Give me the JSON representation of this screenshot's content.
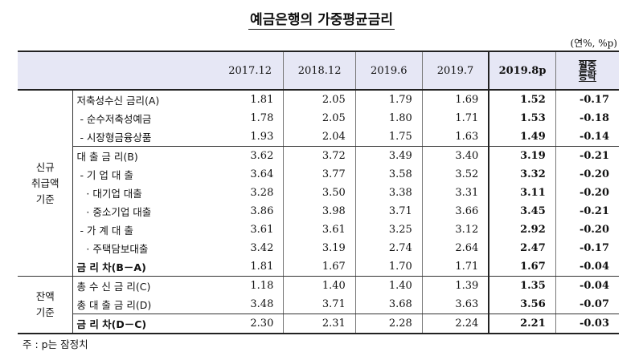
{
  "title": "예금은행의 가중평균금리",
  "unit": "(연%, %p)",
  "header": {
    "cols": [
      "2017.12",
      "2018.12",
      "2019.6",
      "2019.7",
      "2019.8p"
    ],
    "mom": [
      "월중",
      "등락"
    ]
  },
  "groups": {
    "new": [
      "신규",
      "취급액",
      "기준"
    ],
    "bal": [
      "잔액",
      "기준"
    ]
  },
  "rows": [
    {
      "label": "저축성수신 금리(A)",
      "v": [
        "1.81",
        "2.05",
        "1.79",
        "1.69",
        "1.52",
        "-0.17"
      ]
    },
    {
      "label": " - 순수저축성예금",
      "v": [
        "1.78",
        "2.05",
        "1.80",
        "1.71",
        "1.53",
        "-0.18"
      ]
    },
    {
      "label": " - 시장형금융상품",
      "v": [
        "1.93",
        "2.04",
        "1.75",
        "1.63",
        "1.49",
        "-0.14"
      ]
    },
    {
      "label": "대 출 금 리(B)",
      "v": [
        "3.62",
        "3.72",
        "3.49",
        "3.40",
        "3.19",
        "-0.21"
      ]
    },
    {
      "label": " - 기 업 대 출",
      "v": [
        "3.64",
        "3.77",
        "3.58",
        "3.52",
        "3.32",
        "-0.20"
      ]
    },
    {
      "label": "   · 대기업 대출",
      "v": [
        "3.28",
        "3.50",
        "3.38",
        "3.31",
        "3.11",
        "-0.20"
      ]
    },
    {
      "label": "   · 중소기업 대출",
      "v": [
        "3.86",
        "3.98",
        "3.71",
        "3.66",
        "3.45",
        "-0.21"
      ]
    },
    {
      "label": " - 가 계 대 출",
      "v": [
        "3.61",
        "3.61",
        "3.25",
        "3.12",
        "2.92",
        "-0.20"
      ]
    },
    {
      "label": "   · 주택담보대출",
      "v": [
        "3.42",
        "3.19",
        "2.74",
        "2.64",
        "2.47",
        "-0.17"
      ]
    },
    {
      "label": "금 리 차(B－A)",
      "v": [
        "1.81",
        "1.67",
        "1.70",
        "1.71",
        "1.67",
        "-0.04"
      ]
    },
    {
      "label": "총 수 신 금 리(C)",
      "v": [
        "1.18",
        "1.40",
        "1.40",
        "1.39",
        "1.35",
        "-0.04"
      ]
    },
    {
      "label": "총 대 출 금 리(D)",
      "v": [
        "3.48",
        "3.71",
        "3.68",
        "3.63",
        "3.56",
        "-0.07"
      ]
    },
    {
      "label": "금 리 차(D－C)",
      "v": [
        "2.30",
        "2.31",
        "2.28",
        "2.24",
        "2.21",
        "-0.03"
      ]
    }
  ],
  "footnote": "주 : p는 잠정치"
}
